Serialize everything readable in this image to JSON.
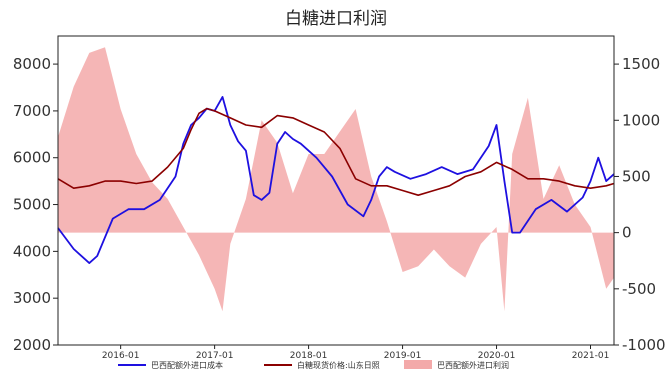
{
  "chart_data": {
    "type": "line",
    "title": "白糖进口利润",
    "x_tick_labels": [
      "2016-01",
      "2017-01",
      "2018-01",
      "2019-01",
      "2020-01",
      "2021-01"
    ],
    "x_ticks": [
      "2016-01",
      "2017-01",
      "2018-01",
      "2019-01",
      "2020-01",
      "2021-01"
    ],
    "x_range": [
      "2015-05",
      "2021-04"
    ],
    "y_left": {
      "ticks": [
        2000,
        3000,
        4000,
        5000,
        6000,
        7000,
        8000
      ],
      "range": [
        2000,
        8600
      ]
    },
    "y_right": {
      "ticks": [
        -1000,
        -500,
        0,
        500,
        1000,
        1500
      ],
      "range": [
        -1000,
        1750
      ]
    },
    "grid": false,
    "legend_position": "bottom",
    "series": [
      {
        "name": "巴西配额外进口成本",
        "axis": "left",
        "color": "#1e10e0",
        "x": [
          "2015-05",
          "2015-07",
          "2015-09",
          "2015-10",
          "2015-12",
          "2016-02",
          "2016-04",
          "2016-06",
          "2016-08",
          "2016-09",
          "2016-10",
          "2016-11",
          "2016-12",
          "2017-01",
          "2017-02",
          "2017-03",
          "2017-04",
          "2017-05",
          "2017-06",
          "2017-07",
          "2017-08",
          "2017-09",
          "2017-10",
          "2017-11",
          "2017-12",
          "2018-02",
          "2018-04",
          "2018-06",
          "2018-08",
          "2018-09",
          "2018-10",
          "2018-11",
          "2018-12",
          "2019-02",
          "2019-04",
          "2019-06",
          "2019-08",
          "2019-10",
          "2019-12",
          "2020-01",
          "2020-02",
          "2020-03",
          "2020-04",
          "2020-06",
          "2020-08",
          "2020-10",
          "2020-12",
          "2021-01",
          "2021-02",
          "2021-03",
          "2021-04"
        ],
        "values": [
          4500,
          4050,
          3750,
          3900,
          4700,
          4900,
          4900,
          5100,
          5600,
          6300,
          6700,
          6850,
          7050,
          7000,
          7300,
          6700,
          6350,
          6150,
          5200,
          5100,
          5250,
          6300,
          6550,
          6400,
          6300,
          6000,
          5600,
          5000,
          4750,
          5100,
          5600,
          5800,
          5700,
          5550,
          5650,
          5800,
          5650,
          5750,
          6250,
          6700,
          5500,
          4400,
          4400,
          4900,
          5100,
          4850,
          5150,
          5500,
          6000,
          5500,
          5650
        ]
      },
      {
        "name": "白糖现货价格:山东日照",
        "axis": "left",
        "color": "#8b0000",
        "x": [
          "2015-05",
          "2015-07",
          "2015-09",
          "2015-11",
          "2016-01",
          "2016-03",
          "2016-05",
          "2016-07",
          "2016-09",
          "2016-10",
          "2016-11",
          "2016-12",
          "2017-01",
          "2017-03",
          "2017-05",
          "2017-07",
          "2017-09",
          "2017-11",
          "2018-01",
          "2018-03",
          "2018-05",
          "2018-07",
          "2018-09",
          "2018-11",
          "2019-01",
          "2019-03",
          "2019-05",
          "2019-07",
          "2019-09",
          "2019-11",
          "2020-01",
          "2020-03",
          "2020-05",
          "2020-07",
          "2020-09",
          "2020-11",
          "2021-01",
          "2021-03",
          "2021-04"
        ],
        "values": [
          5550,
          5350,
          5400,
          5500,
          5500,
          5450,
          5500,
          5800,
          6200,
          6600,
          6950,
          7050,
          7000,
          6850,
          6700,
          6650,
          6900,
          6850,
          6700,
          6550,
          6200,
          5550,
          5400,
          5400,
          5300,
          5200,
          5300,
          5400,
          5600,
          5700,
          5900,
          5750,
          5550,
          5550,
          5500,
          5400,
          5350,
          5400,
          5450
        ]
      },
      {
        "name": "巴西配额外进口利润",
        "type": "area",
        "axis": "right",
        "color": "#f3a9a9",
        "x": [
          "2015-05",
          "2015-07",
          "2015-09",
          "2015-11",
          "2016-01",
          "2016-03",
          "2016-05",
          "2016-07",
          "2016-09",
          "2016-11",
          "2017-01",
          "2017-02",
          "2017-03",
          "2017-05",
          "2017-07",
          "2017-09",
          "2017-11",
          "2018-01",
          "2018-03",
          "2018-05",
          "2018-07",
          "2018-09",
          "2018-11",
          "2019-01",
          "2019-03",
          "2019-05",
          "2019-07",
          "2019-09",
          "2019-11",
          "2020-01",
          "2020-02",
          "2020-03",
          "2020-05",
          "2020-07",
          "2020-09",
          "2020-11",
          "2021-01",
          "2021-03",
          "2021-04"
        ],
        "values": [
          850,
          1300,
          1600,
          1650,
          1100,
          700,
          450,
          300,
          50,
          -200,
          -500,
          -700,
          -100,
          300,
          1000,
          800,
          350,
          700,
          700,
          900,
          1100,
          500,
          100,
          -350,
          -300,
          -150,
          -300,
          -400,
          -100,
          50,
          -700,
          700,
          1200,
          300,
          600,
          250,
          50,
          -500,
          -400
        ]
      }
    ]
  }
}
